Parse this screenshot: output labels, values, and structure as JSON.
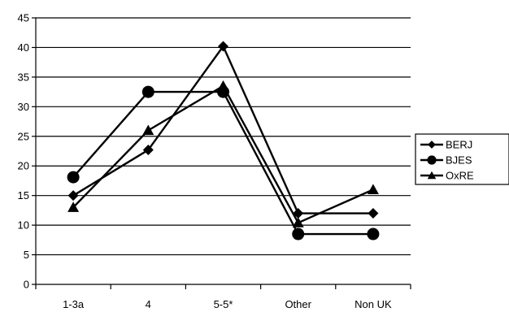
{
  "chart_data": {
    "type": "line",
    "title": "",
    "xlabel": "",
    "ylabel": "",
    "categories": [
      "1-3a",
      "4",
      "5-5*",
      "Other",
      "Non UK"
    ],
    "ylim": [
      0,
      45
    ],
    "yticks": [
      0,
      5,
      10,
      15,
      20,
      25,
      30,
      35,
      40,
      45
    ],
    "yticks_text": [
      "0",
      "5",
      "10",
      "15",
      "20",
      "25",
      "30",
      "35",
      "40",
      "45"
    ],
    "grid": "horizontal",
    "legend": "right",
    "series": [
      {
        "name": "BERJ",
        "marker": "diamond",
        "color": "#000000",
        "values": [
          15,
          22.7,
          40.2,
          12,
          12
        ]
      },
      {
        "name": "BJES",
        "marker": "circle",
        "color": "#000000",
        "values": [
          18.1,
          32.5,
          32.5,
          8.5,
          8.5
        ]
      },
      {
        "name": "OxRE",
        "marker": "triangle",
        "color": "#000000",
        "values": [
          13,
          26,
          33.5,
          10.4,
          16
        ]
      }
    ]
  }
}
